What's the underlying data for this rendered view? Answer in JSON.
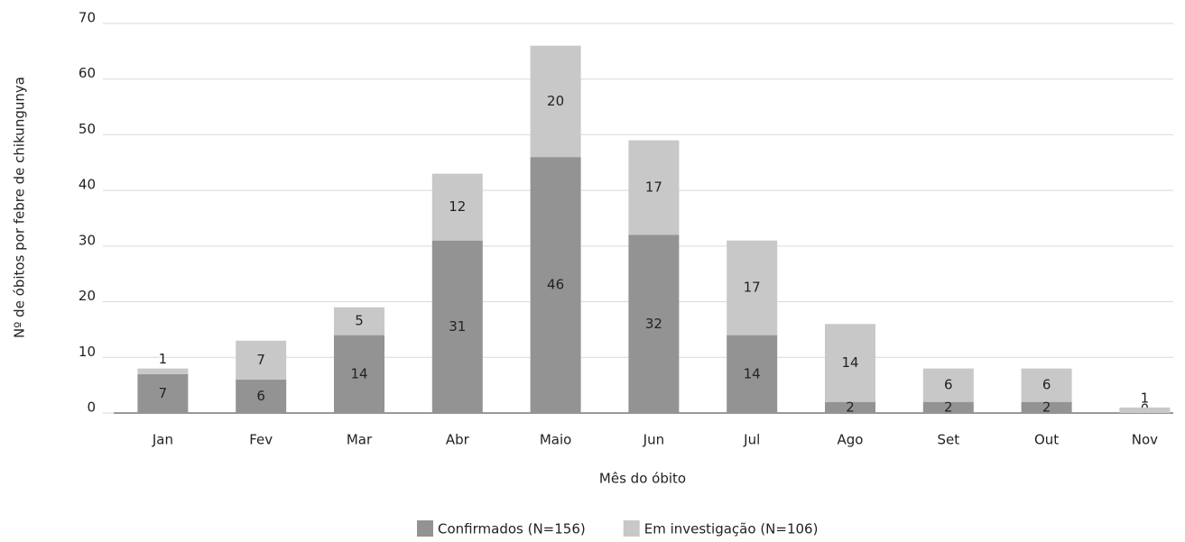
{
  "chart_data": {
    "type": "stacked_bar",
    "y_label": "Nº de óbitos por febre de chikungunya",
    "x_label": "Mês do óbito",
    "categories": [
      "Jan",
      "Fev",
      "Mar",
      "Abr",
      "Maio",
      "Jun",
      "Jul",
      "Ago",
      "Set",
      "Out",
      "Nov"
    ],
    "series": [
      {
        "name": "Confirmados (N=156)",
        "color": "#939393",
        "values": [
          7,
          6,
          14,
          31,
          46,
          32,
          14,
          2,
          2,
          2,
          0
        ]
      },
      {
        "name": "Em investigação (N=106)",
        "color": "#c8c8c8",
        "values": [
          1,
          7,
          5,
          12,
          20,
          17,
          17,
          14,
          6,
          6,
          1
        ]
      }
    ],
    "ylim": [
      0,
      70
    ],
    "yticks": [
      0,
      10,
      20,
      30,
      40,
      50,
      60,
      70
    ],
    "grid": true,
    "legend": "bottom"
  }
}
